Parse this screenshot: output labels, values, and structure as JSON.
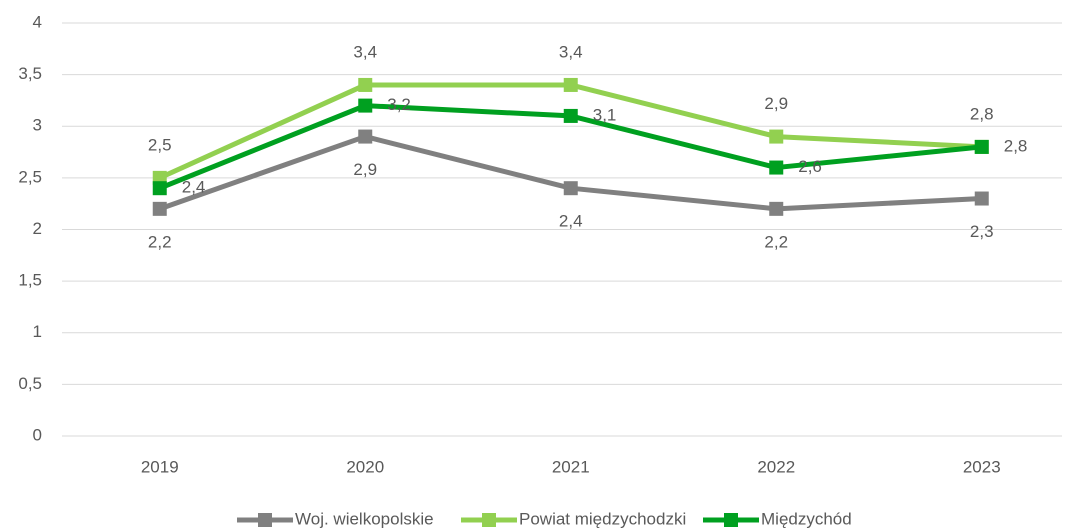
{
  "chart_data": {
    "type": "line",
    "categories": [
      "2019",
      "2020",
      "2021",
      "2022",
      "2023"
    ],
    "series": [
      {
        "name": "Woj. wielkopolskie",
        "color": "#808080",
        "values": [
          2.2,
          2.9,
          2.4,
          2.2,
          2.3
        ],
        "value_labels": [
          "2,2",
          "2,9",
          "2,4",
          "2,2",
          "2,3"
        ]
      },
      {
        "name": "Powiat międzychodzki",
        "color": "#92d050",
        "values": [
          2.5,
          3.4,
          3.4,
          2.9,
          2.8
        ],
        "value_labels": [
          "2,5",
          "3,4",
          "3,4",
          "2,9",
          "2,8"
        ]
      },
      {
        "name": "Międzychód",
        "color": "#00a020",
        "values": [
          2.4,
          3.2,
          3.1,
          2.6,
          2.8
        ],
        "value_labels": [
          "2,4",
          "3,2",
          "3,1",
          "2,6",
          "2,8"
        ]
      }
    ],
    "ylim": [
      0,
      4
    ],
    "yticks": [
      0,
      {
        "value": 0.5,
        "label": "0,5"
      },
      1,
      {
        "value": 1.5,
        "label": "1,5"
      },
      2,
      {
        "value": 2.5,
        "label": "2,5"
      },
      3,
      {
        "value": 3.5,
        "label": "3,5"
      },
      4
    ],
    "grid": true,
    "legend": "bottom"
  }
}
